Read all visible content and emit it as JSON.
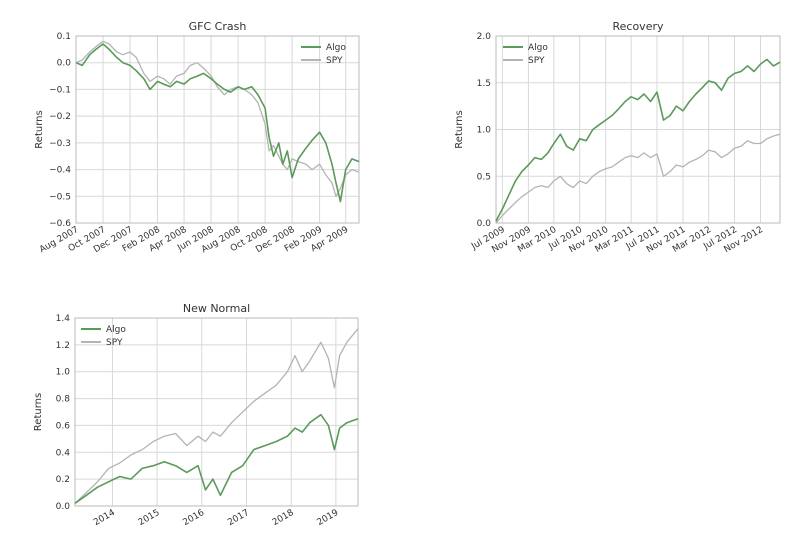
{
  "colors": {
    "algo": "#5a9a5a",
    "spy": "#b4b4b4",
    "grid": "#d8d8d8",
    "frame": "#bbbbbb"
  },
  "chart_data": [
    {
      "type": "line",
      "title": "GFC Crash",
      "ylabel": "Returns",
      "ylim": [
        -0.6,
        0.1
      ],
      "xlim": [
        "2007-08-01",
        "2009-05-01"
      ],
      "y_ticks": [
        "0.1",
        "0.0",
        "−0.1",
        "−0.2",
        "−0.3",
        "−0.4",
        "−0.5",
        "−0.6"
      ],
      "x_ticks": [
        "Aug 2007",
        "Oct 2007",
        "Dec 2007",
        "Feb 2008",
        "Apr 2008",
        "Jun 2008",
        "Aug 2008",
        "Oct 2008",
        "Dec 2008",
        "Feb 2009",
        "Apr 2009"
      ],
      "legend": "top-right",
      "grid": true,
      "series": [
        {
          "name": "Algo",
          "color": "#5a9a5a",
          "x": [
            "2007-08-01",
            "2007-08-15",
            "2007-09-01",
            "2007-09-15",
            "2007-10-01",
            "2007-10-15",
            "2007-11-01",
            "2007-11-15",
            "2007-12-01",
            "2007-12-15",
            "2008-01-01",
            "2008-01-15",
            "2008-02-01",
            "2008-02-15",
            "2008-03-01",
            "2008-03-15",
            "2008-04-01",
            "2008-04-15",
            "2008-05-01",
            "2008-05-15",
            "2008-06-01",
            "2008-06-15",
            "2008-07-01",
            "2008-07-15",
            "2008-08-01",
            "2008-08-15",
            "2008-09-01",
            "2008-09-15",
            "2008-10-01",
            "2008-10-10",
            "2008-10-20",
            "2008-11-01",
            "2008-11-10",
            "2008-11-20",
            "2008-12-01",
            "2008-12-15",
            "2009-01-01",
            "2009-01-15",
            "2009-02-01",
            "2009-02-15",
            "2009-03-01",
            "2009-03-10",
            "2009-03-20",
            "2009-04-01",
            "2009-04-15",
            "2009-05-01"
          ],
          "y": [
            0.0,
            -0.01,
            0.03,
            0.05,
            0.07,
            0.05,
            0.02,
            0.0,
            -0.01,
            -0.03,
            -0.06,
            -0.1,
            -0.07,
            -0.08,
            -0.09,
            -0.07,
            -0.08,
            -0.06,
            -0.05,
            -0.04,
            -0.06,
            -0.08,
            -0.1,
            -0.11,
            -0.09,
            -0.1,
            -0.09,
            -0.12,
            -0.17,
            -0.28,
            -0.35,
            -0.3,
            -0.38,
            -0.33,
            -0.43,
            -0.36,
            -0.32,
            -0.29,
            -0.26,
            -0.3,
            -0.38,
            -0.45,
            -0.52,
            -0.4,
            -0.36,
            -0.37
          ]
        },
        {
          "name": "SPY",
          "color": "#b4b4b4",
          "x": [
            "2007-08-01",
            "2007-08-15",
            "2007-09-01",
            "2007-09-15",
            "2007-10-01",
            "2007-10-15",
            "2007-11-01",
            "2007-11-15",
            "2007-12-01",
            "2007-12-15",
            "2008-01-01",
            "2008-01-15",
            "2008-02-01",
            "2008-02-15",
            "2008-03-01",
            "2008-03-15",
            "2008-04-01",
            "2008-04-15",
            "2008-05-01",
            "2008-05-15",
            "2008-06-01",
            "2008-06-15",
            "2008-07-01",
            "2008-07-15",
            "2008-08-01",
            "2008-08-15",
            "2008-09-01",
            "2008-09-15",
            "2008-10-01",
            "2008-10-10",
            "2008-10-20",
            "2008-11-01",
            "2008-11-10",
            "2008-11-20",
            "2008-12-01",
            "2008-12-15",
            "2009-01-01",
            "2009-01-15",
            "2009-02-01",
            "2009-02-15",
            "2009-03-01",
            "2009-03-10",
            "2009-03-20",
            "2009-04-01",
            "2009-04-15",
            "2009-05-01"
          ],
          "y": [
            0.0,
            0.01,
            0.04,
            0.06,
            0.08,
            0.07,
            0.04,
            0.03,
            0.04,
            0.02,
            -0.04,
            -0.07,
            -0.05,
            -0.06,
            -0.08,
            -0.05,
            -0.04,
            -0.01,
            0.0,
            -0.02,
            -0.05,
            -0.09,
            -0.12,
            -0.1,
            -0.09,
            -0.1,
            -0.12,
            -0.15,
            -0.23,
            -0.33,
            -0.31,
            -0.35,
            -0.38,
            -0.4,
            -0.36,
            -0.37,
            -0.38,
            -0.4,
            -0.38,
            -0.42,
            -0.45,
            -0.5,
            -0.47,
            -0.42,
            -0.4,
            -0.41
          ]
        }
      ]
    },
    {
      "type": "line",
      "title": "Recovery",
      "ylabel": "Returns",
      "ylim": [
        0.0,
        2.0
      ],
      "xlim": [
        "2009-06-01",
        "2013-02-01"
      ],
      "y_ticks": [
        "2.0",
        "1.5",
        "1.0",
        "0.5",
        "0.0"
      ],
      "x_ticks": [
        "Jul 2009",
        "Nov 2009",
        "Mar 2010",
        "Jul 2010",
        "Nov 2010",
        "Mar 2011",
        "Jul 2011",
        "Nov 2011",
        "Mar 2012",
        "Jul 2012",
        "Nov 2012"
      ],
      "legend": "top-left",
      "grid": true,
      "series": [
        {
          "name": "Algo",
          "color": "#5a9a5a",
          "x": [
            "2009-06-01",
            "2009-07-01",
            "2009-08-01",
            "2009-09-01",
            "2009-10-01",
            "2009-11-01",
            "2009-12-01",
            "2010-01-01",
            "2010-02-01",
            "2010-03-01",
            "2010-04-01",
            "2010-05-01",
            "2010-06-01",
            "2010-07-01",
            "2010-08-01",
            "2010-09-01",
            "2010-10-01",
            "2010-11-01",
            "2010-12-01",
            "2011-01-01",
            "2011-02-01",
            "2011-03-01",
            "2011-04-01",
            "2011-05-01",
            "2011-06-01",
            "2011-07-01",
            "2011-08-01",
            "2011-09-01",
            "2011-10-01",
            "2011-11-01",
            "2011-12-01",
            "2012-01-01",
            "2012-02-01",
            "2012-03-01",
            "2012-04-01",
            "2012-05-01",
            "2012-06-01",
            "2012-07-01",
            "2012-08-01",
            "2012-09-01",
            "2012-10-01",
            "2012-11-01",
            "2012-12-01",
            "2013-01-01",
            "2013-02-01"
          ],
          "y": [
            0.02,
            0.15,
            0.3,
            0.45,
            0.55,
            0.62,
            0.7,
            0.68,
            0.75,
            0.85,
            0.95,
            0.82,
            0.78,
            0.9,
            0.88,
            1.0,
            1.05,
            1.1,
            1.15,
            1.22,
            1.3,
            1.35,
            1.32,
            1.38,
            1.3,
            1.4,
            1.1,
            1.15,
            1.25,
            1.2,
            1.3,
            1.38,
            1.45,
            1.52,
            1.5,
            1.42,
            1.55,
            1.6,
            1.62,
            1.68,
            1.62,
            1.7,
            1.75,
            1.68,
            1.72
          ]
        },
        {
          "name": "SPY",
          "color": "#b4b4b4",
          "x": [
            "2009-06-01",
            "2009-07-01",
            "2009-08-01",
            "2009-09-01",
            "2009-10-01",
            "2009-11-01",
            "2009-12-01",
            "2010-01-01",
            "2010-02-01",
            "2010-03-01",
            "2010-04-01",
            "2010-05-01",
            "2010-06-01",
            "2010-07-01",
            "2010-08-01",
            "2010-09-01",
            "2010-10-01",
            "2010-11-01",
            "2010-12-01",
            "2011-01-01",
            "2011-02-01",
            "2011-03-01",
            "2011-04-01",
            "2011-05-01",
            "2011-06-01",
            "2011-07-01",
            "2011-08-01",
            "2011-09-01",
            "2011-10-01",
            "2011-11-01",
            "2011-12-01",
            "2012-01-01",
            "2012-02-01",
            "2012-03-01",
            "2012-04-01",
            "2012-05-01",
            "2012-06-01",
            "2012-07-01",
            "2012-08-01",
            "2012-09-01",
            "2012-10-01",
            "2012-11-01",
            "2012-12-01",
            "2013-01-01",
            "2013-02-01"
          ],
          "y": [
            0.0,
            0.08,
            0.15,
            0.22,
            0.28,
            0.33,
            0.38,
            0.4,
            0.38,
            0.45,
            0.5,
            0.42,
            0.38,
            0.45,
            0.42,
            0.5,
            0.55,
            0.58,
            0.6,
            0.65,
            0.7,
            0.72,
            0.7,
            0.75,
            0.7,
            0.74,
            0.5,
            0.55,
            0.62,
            0.6,
            0.65,
            0.68,
            0.72,
            0.78,
            0.76,
            0.7,
            0.74,
            0.8,
            0.82,
            0.88,
            0.85,
            0.85,
            0.9,
            0.93,
            0.95
          ]
        }
      ]
    },
    {
      "type": "line",
      "title": "New Normal",
      "ylabel": "Returns",
      "ylim": [
        0.0,
        1.4
      ],
      "xlim": [
        "2013-03-01",
        "2019-07-01"
      ],
      "y_ticks": [
        "1.4",
        "1.2",
        "1.0",
        "0.8",
        "0.6",
        "0.4",
        "0.2",
        "0.0"
      ],
      "x_ticks": [
        "2014",
        "2015",
        "2016",
        "2017",
        "2018",
        "2019"
      ],
      "legend": "top-left",
      "grid": true,
      "series": [
        {
          "name": "Algo",
          "color": "#5a9a5a",
          "x": [
            "2013-03-01",
            "2013-06-01",
            "2013-09-01",
            "2013-12-01",
            "2014-03-01",
            "2014-06-01",
            "2014-09-01",
            "2014-12-01",
            "2015-03-01",
            "2015-06-01",
            "2015-09-01",
            "2015-12-01",
            "2016-02-01",
            "2016-04-01",
            "2016-06-01",
            "2016-09-01",
            "2016-12-01",
            "2017-03-01",
            "2017-06-01",
            "2017-09-01",
            "2017-12-01",
            "2018-02-01",
            "2018-04-01",
            "2018-06-01",
            "2018-09-01",
            "2018-11-01",
            "2018-12-20",
            "2019-02-01",
            "2019-04-01",
            "2019-07-01"
          ],
          "y": [
            0.02,
            0.08,
            0.14,
            0.18,
            0.22,
            0.2,
            0.28,
            0.3,
            0.33,
            0.3,
            0.25,
            0.3,
            0.12,
            0.2,
            0.08,
            0.25,
            0.3,
            0.42,
            0.45,
            0.48,
            0.52,
            0.58,
            0.55,
            0.62,
            0.68,
            0.6,
            0.42,
            0.58,
            0.62,
            0.65
          ]
        },
        {
          "name": "SPY",
          "color": "#b4b4b4",
          "x": [
            "2013-03-01",
            "2013-06-01",
            "2013-09-01",
            "2013-12-01",
            "2014-03-01",
            "2014-06-01",
            "2014-09-01",
            "2014-12-01",
            "2015-03-01",
            "2015-06-01",
            "2015-09-01",
            "2015-12-01",
            "2016-02-01",
            "2016-04-01",
            "2016-06-01",
            "2016-09-01",
            "2016-12-01",
            "2017-03-01",
            "2017-06-01",
            "2017-09-01",
            "2017-12-01",
            "2018-02-01",
            "2018-04-01",
            "2018-06-01",
            "2018-09-01",
            "2018-11-01",
            "2018-12-20",
            "2019-02-01",
            "2019-04-01",
            "2019-07-01"
          ],
          "y": [
            0.02,
            0.1,
            0.18,
            0.28,
            0.32,
            0.38,
            0.42,
            0.48,
            0.52,
            0.54,
            0.45,
            0.52,
            0.48,
            0.55,
            0.52,
            0.62,
            0.7,
            0.78,
            0.84,
            0.9,
            1.0,
            1.12,
            1.0,
            1.08,
            1.22,
            1.1,
            0.88,
            1.12,
            1.22,
            1.32
          ]
        }
      ]
    }
  ]
}
